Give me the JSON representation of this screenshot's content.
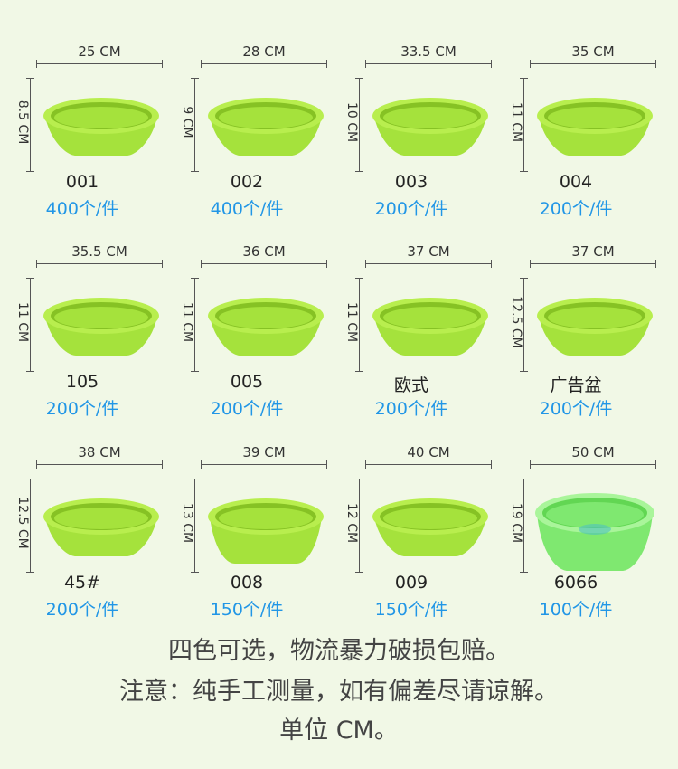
{
  "colors": {
    "background": "#f1f8e6",
    "bowl_green": "#a5e23c",
    "bowl_rim": "#b8ee4e",
    "bowl_shadow": "#86c224",
    "bowl_6066": "#7fe870",
    "quantity_blue": "#2196e6"
  },
  "items": [
    {
      "width": "25 CM",
      "height": "8.5 CM",
      "code": "001",
      "qty": "400个/件"
    },
    {
      "width": "28 CM",
      "height": "9 CM",
      "code": "002",
      "qty": "400个/件"
    },
    {
      "width": "33.5 CM",
      "height": "10 CM",
      "code": "003",
      "qty": "200个/件"
    },
    {
      "width": "35 CM",
      "height": "11 CM",
      "code": "004",
      "qty": "200个/件"
    },
    {
      "width": "35.5 CM",
      "height": "11 CM",
      "code": "105",
      "qty": "200个/件"
    },
    {
      "width": "36 CM",
      "height": "11 CM",
      "code": "005",
      "qty": "200个/件"
    },
    {
      "width": "37 CM",
      "height": "11 CM",
      "code": "欧式",
      "qty": "200个/件"
    },
    {
      "width": "37 CM",
      "height": "12.5 CM",
      "code": "广告盆",
      "qty": "200个/件"
    },
    {
      "width": "38 CM",
      "height": "12.5 CM",
      "code": "45#",
      "qty": "200个/件"
    },
    {
      "width": "39 CM",
      "height": "13 CM",
      "code": "008",
      "qty": "150个/件"
    },
    {
      "width": "40 CM",
      "height": "12 CM",
      "code": "009",
      "qty": "150个/件"
    },
    {
      "width": "50 CM",
      "height": "19 CM",
      "code": "6066",
      "qty": "100个/件"
    }
  ],
  "footer": {
    "line1": "四色可选，物流暴力破损包赔。",
    "line2": "注意：纯手工测量，如有偏差尽请谅解。",
    "line3": "单位 CM。"
  }
}
